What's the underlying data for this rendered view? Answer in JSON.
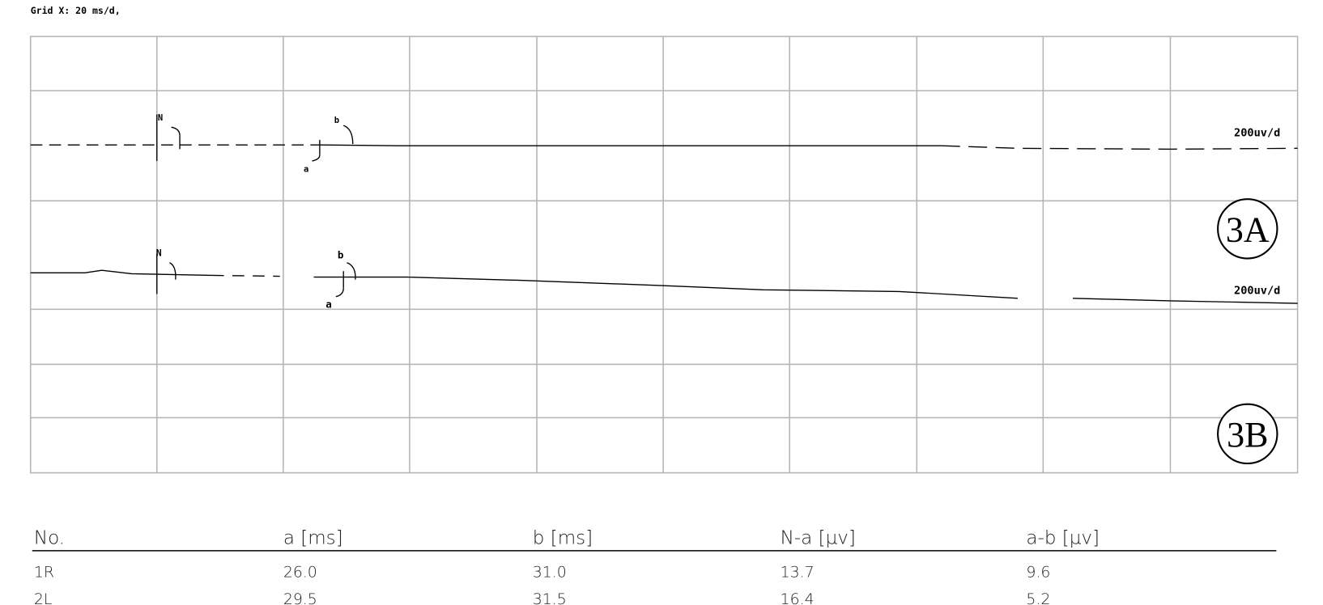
{
  "header": {
    "grid_x": "Grid X: 20 ms/d,"
  },
  "traces": [
    {
      "scale": "200uv/d",
      "markers": {
        "N": "N",
        "a": "a",
        "b": "b"
      }
    },
    {
      "scale": "200uv/d",
      "markers": {
        "N": "N",
        "a": "a",
        "b": "b"
      }
    }
  ],
  "panels": [
    "3A",
    "3B"
  ],
  "table": {
    "columns": [
      "No.",
      "a [ms]",
      "b [ms]",
      "N-a [µv]",
      "a-b [µv]"
    ],
    "rows": [
      [
        "1R",
        "26.0",
        "31.0",
        "13.7",
        "9.6"
      ],
      [
        "2L",
        "29.5",
        "31.5",
        "16.4",
        "5.2"
      ]
    ]
  }
}
